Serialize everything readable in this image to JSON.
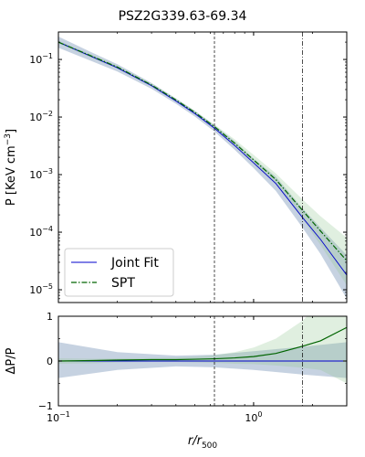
{
  "chart_data": [
    {
      "type": "line",
      "title": "PSZ2G339.63-69.34",
      "xscale": "log",
      "yscale": "log",
      "xlim": [
        0.1,
        3.0
      ],
      "ylim": [
        6e-06,
        0.3
      ],
      "ylabel": "P [KeV cm$^{-3}$]",
      "x_ticks": [
        {
          "value": 0.1,
          "label": "10^-1"
        },
        {
          "value": 1,
          "label": "10^0"
        }
      ],
      "y_ticks": [
        {
          "value": 1e-05,
          "label": "10^-5"
        },
        {
          "value": 0.0001,
          "label": "10^-4"
        },
        {
          "value": 0.001,
          "label": "10^-3"
        },
        {
          "value": 0.01,
          "label": "10^-2"
        },
        {
          "value": 0.1,
          "label": "10^-1"
        }
      ],
      "vlines": [
        {
          "x": 0.63,
          "style": "dashed"
        },
        {
          "x": 1.78,
          "style": "dashdot"
        }
      ],
      "legend": {
        "position": "lower-left"
      },
      "series": [
        {
          "name": "Joint Fit",
          "color": "#0000cc",
          "style": "solid",
          "x": [
            0.1,
            0.15,
            0.2,
            0.3,
            0.4,
            0.5,
            0.63,
            0.8,
            1.0,
            1.3,
            1.78,
            2.2,
            3.0
          ],
          "y": [
            0.2,
            0.11,
            0.072,
            0.035,
            0.019,
            0.0115,
            0.0064,
            0.0032,
            0.0016,
            0.0007,
            0.00018,
            7.5e-05,
            1.8e-05
          ],
          "band_lower": [
            0.16,
            0.092,
            0.062,
            0.031,
            0.017,
            0.0102,
            0.0056,
            0.0027,
            0.0013,
            0.00052,
            0.00012,
            4.2e-05,
            7e-06
          ],
          "band_upper": [
            0.25,
            0.13,
            0.083,
            0.039,
            0.021,
            0.0128,
            0.0072,
            0.0038,
            0.0019,
            0.00092,
            0.00026,
            0.00012,
            4e-05
          ],
          "band_color": "#5b7fa8"
        },
        {
          "name": "SPT",
          "color": "#006400",
          "style": "dashdot",
          "x": [
            0.1,
            0.15,
            0.2,
            0.3,
            0.4,
            0.5,
            0.63,
            0.8,
            1.0,
            1.3,
            1.78,
            2.2,
            3.0
          ],
          "y": [
            0.2,
            0.112,
            0.074,
            0.036,
            0.0198,
            0.012,
            0.0068,
            0.0035,
            0.0018,
            0.00082,
            0.00024,
            0.000105,
            3.2e-05
          ],
          "band_lower": [
            0.19,
            0.105,
            0.07,
            0.034,
            0.0186,
            0.0112,
            0.0062,
            0.0031,
            0.00155,
            0.00068,
            0.00017,
            6e-05,
            1.2e-05
          ],
          "band_upper": [
            0.21,
            0.119,
            0.078,
            0.038,
            0.021,
            0.0128,
            0.0074,
            0.0041,
            0.0022,
            0.00105,
            0.00037,
            0.00019,
            8e-05
          ],
          "band_color": "#8fc48f"
        }
      ]
    },
    {
      "type": "line",
      "xscale": "log",
      "xlim": [
        0.1,
        3.0
      ],
      "ylim": [
        -1,
        1
      ],
      "xlabel": "r/r500",
      "ylabel": "ΔP/P",
      "x_ticks": [
        {
          "value": 0.1,
          "label": "10^-1"
        },
        {
          "value": 1,
          "label": "10^0"
        }
      ],
      "y_ticks": [
        {
          "value": -1,
          "label": "−1"
        },
        {
          "value": 0,
          "label": "0"
        },
        {
          "value": 1,
          "label": "1"
        }
      ],
      "vlines": [
        {
          "x": 0.63,
          "style": "dashed"
        },
        {
          "x": 1.78,
          "style": "dashdot"
        }
      ],
      "series": [
        {
          "name": "Joint Fit",
          "color": "#0000cc",
          "x": [
            0.1,
            0.2,
            0.4,
            0.63,
            1.0,
            1.78,
            3.0
          ],
          "y": [
            0,
            0,
            0,
            0,
            0,
            0,
            0
          ],
          "band_lower": [
            -0.38,
            -0.2,
            -0.12,
            -0.14,
            -0.2,
            -0.3,
            -0.38
          ],
          "band_upper": [
            0.42,
            0.2,
            0.12,
            0.14,
            0.22,
            0.32,
            0.42
          ],
          "band_color": "#5b7fa8"
        },
        {
          "name": "SPT",
          "color": "#006400",
          "x": [
            0.1,
            0.15,
            0.2,
            0.3,
            0.4,
            0.5,
            0.63,
            0.8,
            1.0,
            1.3,
            1.78,
            2.2,
            3.0
          ],
          "y": [
            0.0,
            0.01,
            0.02,
            0.03,
            0.03,
            0.04,
            0.05,
            0.07,
            0.1,
            0.17,
            0.33,
            0.45,
            0.75
          ],
          "band_lower": [
            -0.06,
            -0.05,
            -0.03,
            -0.02,
            -0.02,
            -0.03,
            -0.04,
            -0.06,
            -0.07,
            -0.1,
            -0.15,
            -0.2,
            -0.5
          ],
          "band_upper": [
            0.06,
            0.05,
            0.06,
            0.07,
            0.08,
            0.1,
            0.13,
            0.2,
            0.3,
            0.5,
            0.9,
            1.3,
            2.5
          ],
          "band_color": "#8fc48f"
        }
      ]
    }
  ]
}
